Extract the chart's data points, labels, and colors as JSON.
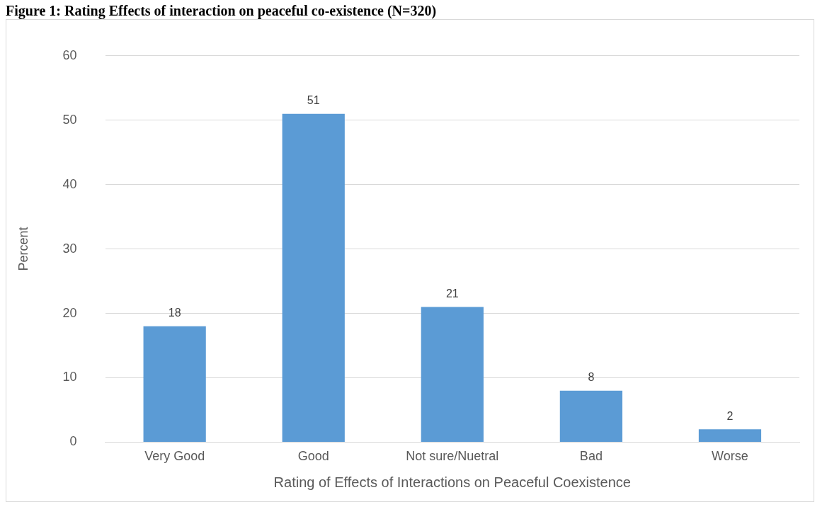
{
  "chart_data": {
    "type": "bar",
    "title": "Figure 1: Rating Effects of interaction on peaceful co-existence (N=320)",
    "xlabel": "Rating of Effects of Interactions on Peaceful Coexistence",
    "ylabel": "Percent",
    "categories": [
      "Very Good",
      "Good",
      "Not sure/Nuetral",
      "Bad",
      "Worse"
    ],
    "values": [
      18,
      51,
      21,
      8,
      2
    ],
    "color": "#5b9bd5",
    "ylim": [
      0,
      60
    ],
    "yticks": [
      0,
      10,
      20,
      30,
      40,
      50,
      60
    ],
    "grid": "y",
    "data_labels": true,
    "legend": false
  }
}
